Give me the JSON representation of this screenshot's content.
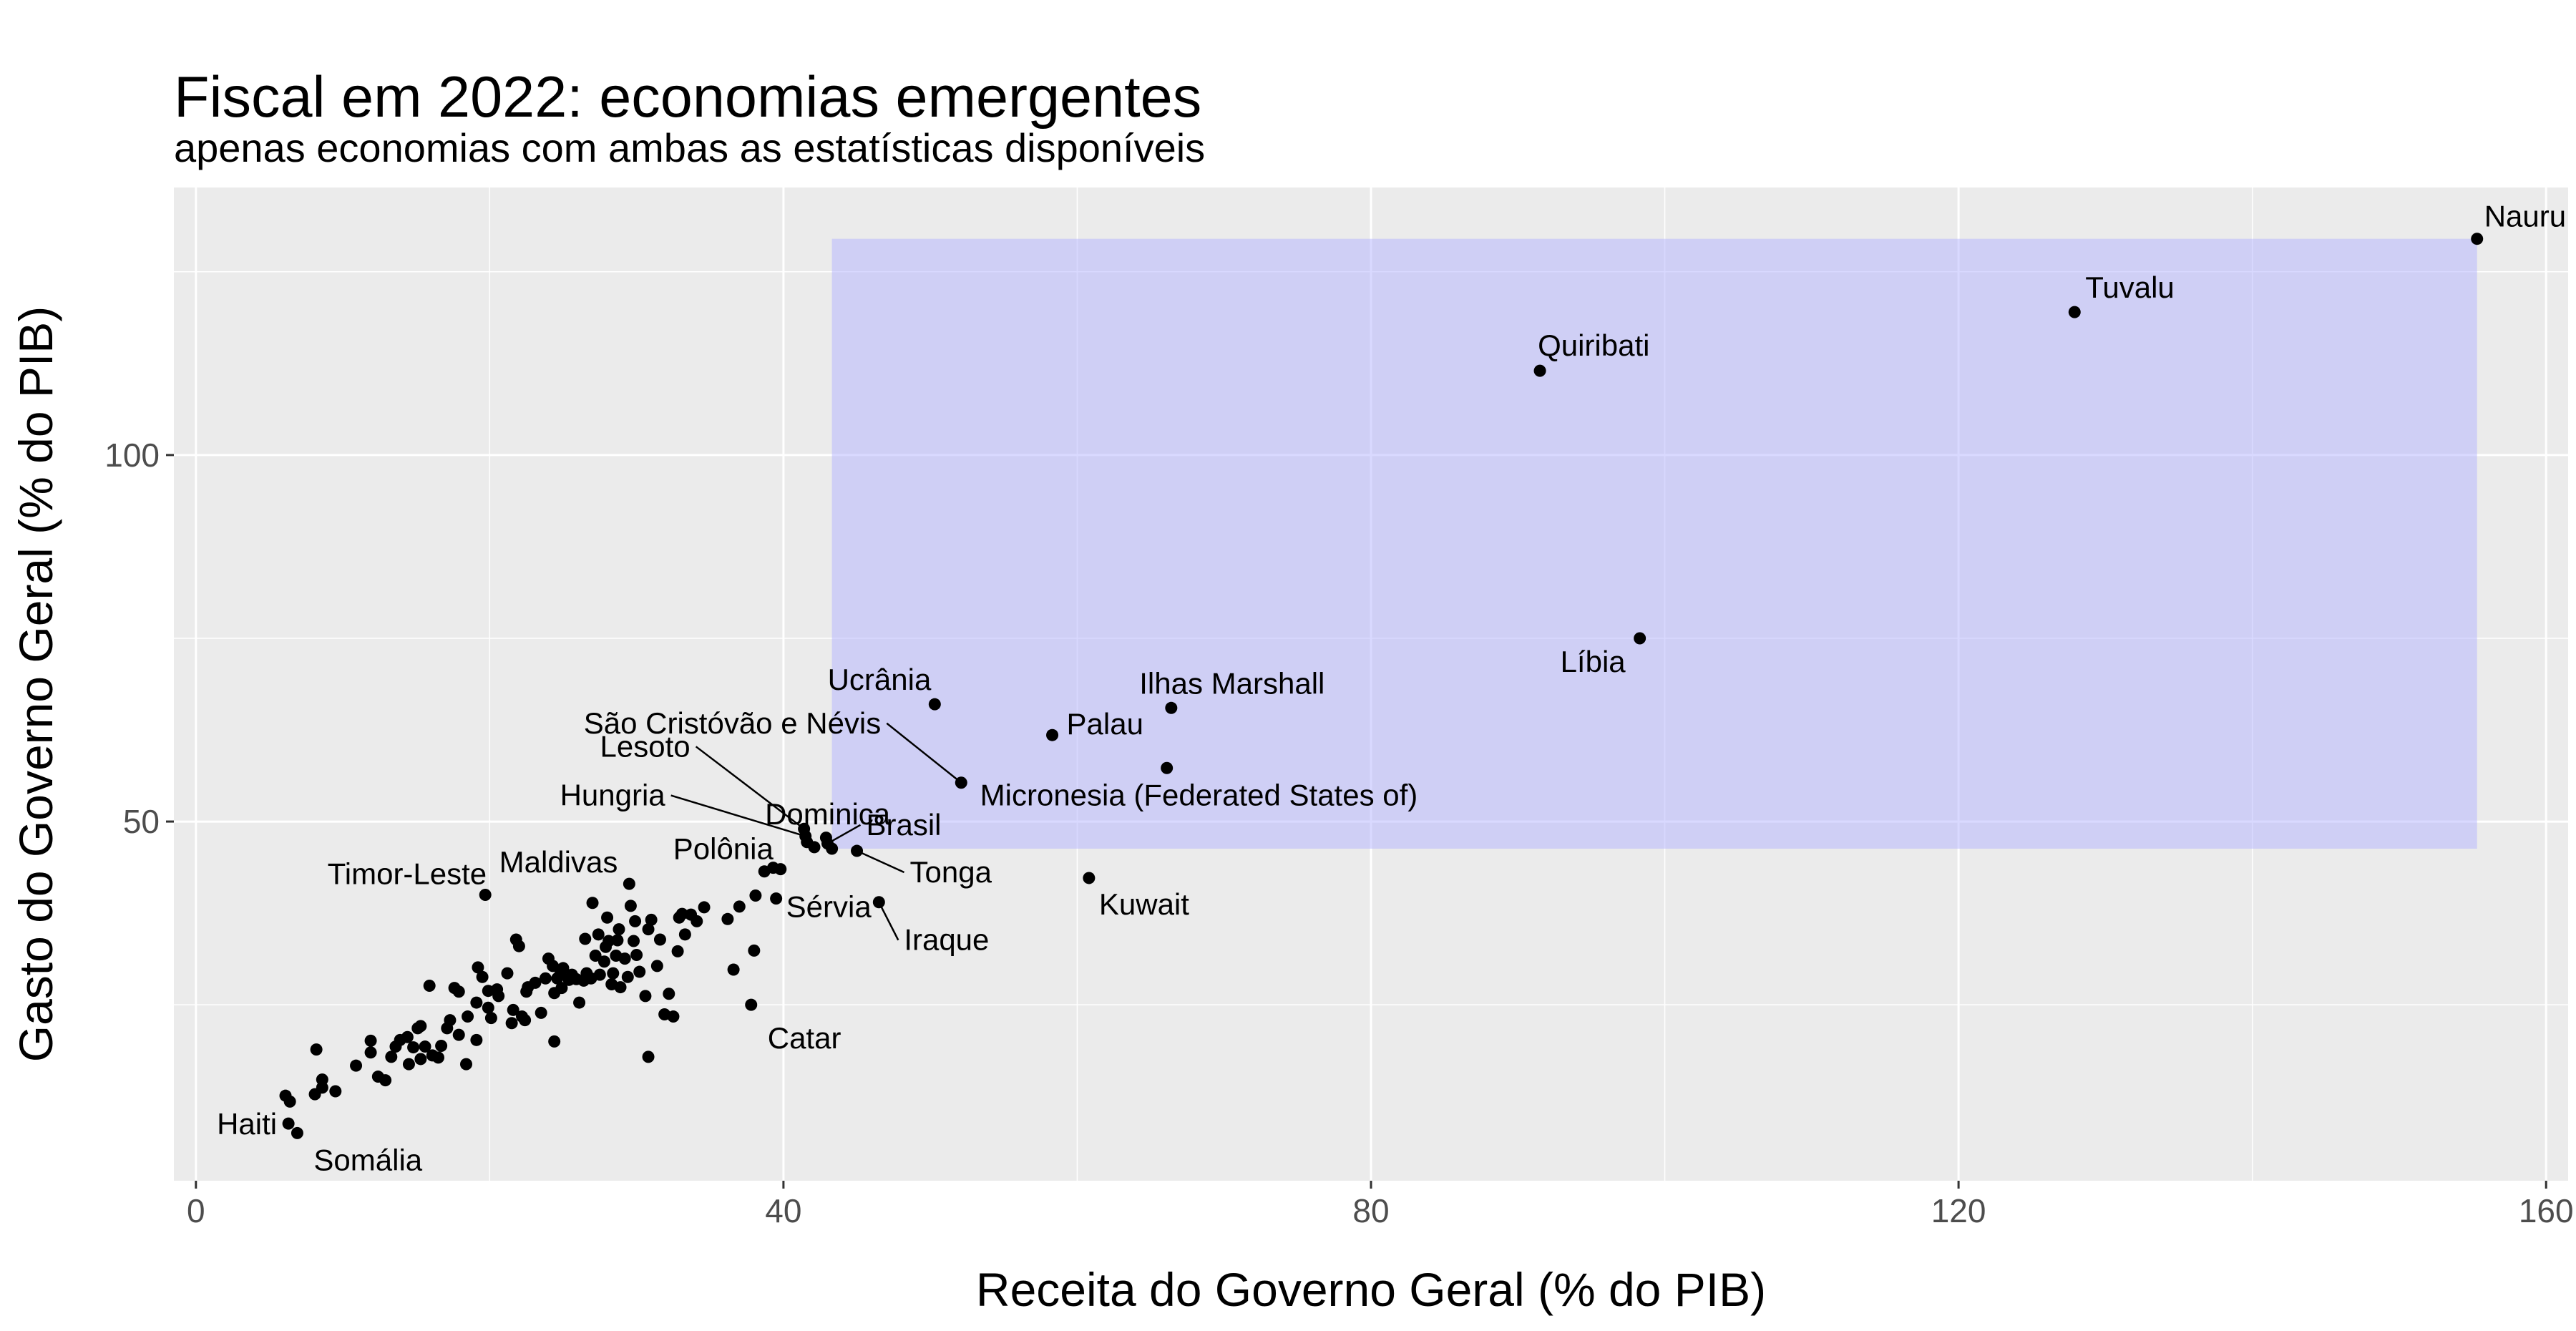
{
  "chart_data": {
    "type": "scatter",
    "title": "Fiscal em 2022: economias emergentes",
    "subtitle": "apenas economias com ambas as estatísticas disponíveis",
    "xlabel": "Receita do Governo Geral (% do PIB)",
    "ylabel": "Gasto do Governo Geral (% do PIB)",
    "xlim": [
      -1.5,
      161.5
    ],
    "ylim": [
      1,
      136.5
    ],
    "xticks": [
      0,
      40,
      80,
      120,
      160
    ],
    "xtick_labels": [
      "0",
      "40",
      "80",
      "120",
      "160"
    ],
    "yticks": [
      50,
      100
    ],
    "ytick_labels": [
      "50",
      "100"
    ],
    "grid": true,
    "highlight_rect": {
      "x": [
        43.3,
        155.3
      ],
      "y": [
        46.3,
        129.5
      ],
      "color": "#b3b3ff"
    },
    "labeled_points": [
      {
        "name": "Nauru",
        "x": 155.3,
        "y": 129.5
      },
      {
        "name": "Tuvalu",
        "x": 127.9,
        "y": 119.5
      },
      {
        "name": "Quiribati",
        "x": 91.5,
        "y": 111.5
      },
      {
        "name": "Líbia",
        "x": 98.3,
        "y": 75.0
      },
      {
        "name": "Ucrânia",
        "x": 50.3,
        "y": 66.0
      },
      {
        "name": "Ilhas Marshall",
        "x": 66.4,
        "y": 65.5
      },
      {
        "name": "Palau",
        "x": 58.3,
        "y": 61.8
      },
      {
        "name": "São Cristóvão e Névis",
        "x": 52.1,
        "y": 55.3
      },
      {
        "name": "Micronesia (Federated States of)",
        "x": 66.1,
        "y": 57.3
      },
      {
        "name": "Lesoto",
        "x": 41.4,
        "y": 49.0
      },
      {
        "name": "Hungria",
        "x": 41.5,
        "y": 48.0
      },
      {
        "name": "Dominica",
        "x": 43.3,
        "y": 46.3
      },
      {
        "name": "Brasil",
        "x": 43.0,
        "y": 47.0
      },
      {
        "name": "Tonga",
        "x": 45.0,
        "y": 46.0
      },
      {
        "name": "Polônia",
        "x": 39.8,
        "y": 43.5
      },
      {
        "name": "Sérvia",
        "x": 39.5,
        "y": 39.5
      },
      {
        "name": "Iraque",
        "x": 46.5,
        "y": 39.0
      },
      {
        "name": "Kuwait",
        "x": 60.8,
        "y": 42.3
      },
      {
        "name": "Timor-Leste",
        "x": 19.7,
        "y": 40.0
      },
      {
        "name": "Maldivas",
        "x": 29.5,
        "y": 41.5
      },
      {
        "name": "Catar",
        "x": 37.8,
        "y": 25.0
      },
      {
        "name": "Haiti",
        "x": 6.3,
        "y": 8.8
      },
      {
        "name": "Somália",
        "x": 6.9,
        "y": 7.5
      }
    ],
    "other_points": [
      [
        6.1,
        12.6
      ],
      [
        6.4,
        11.8
      ],
      [
        8.1,
        12.8
      ],
      [
        8.6,
        13.7
      ],
      [
        8.6,
        14.8
      ],
      [
        9.5,
        13.2
      ],
      [
        8.2,
        18.9
      ],
      [
        10.9,
        16.7
      ],
      [
        11.9,
        18.5
      ],
      [
        11.9,
        20.1
      ],
      [
        12.4,
        15.2
      ],
      [
        12.9,
        14.7
      ],
      [
        13.3,
        17.9
      ],
      [
        13.6,
        19.3
      ],
      [
        13.9,
        20.2
      ],
      [
        14.4,
        20.6
      ],
      [
        14.5,
        16.9
      ],
      [
        14.8,
        19.2
      ],
      [
        15.1,
        21.8
      ],
      [
        15.3,
        17.6
      ],
      [
        15.3,
        22.1
      ],
      [
        15.6,
        19.3
      ],
      [
        15.9,
        27.6
      ],
      [
        16.1,
        18.1
      ],
      [
        16.5,
        17.8
      ],
      [
        16.7,
        19.4
      ],
      [
        17.1,
        21.8
      ],
      [
        17.3,
        22.9
      ],
      [
        17.6,
        27.3
      ],
      [
        17.9,
        26.8
      ],
      [
        17.9,
        20.9
      ],
      [
        18.4,
        16.9
      ],
      [
        18.5,
        23.4
      ],
      [
        19.1,
        20.2
      ],
      [
        19.1,
        25.3
      ],
      [
        19.2,
        30.1
      ],
      [
        19.5,
        28.8
      ],
      [
        19.9,
        24.6
      ],
      [
        19.9,
        26.9
      ],
      [
        20.1,
        23.2
      ],
      [
        20.5,
        27.1
      ],
      [
        20.6,
        26.2
      ],
      [
        21.2,
        29.3
      ],
      [
        21.5,
        22.5
      ],
      [
        21.6,
        24.3
      ],
      [
        21.8,
        33.9
      ],
      [
        22.0,
        33.0
      ],
      [
        22.2,
        23.4
      ],
      [
        22.4,
        22.9
      ],
      [
        22.5,
        26.8
      ],
      [
        22.6,
        27.4
      ],
      [
        23.1,
        28.0
      ],
      [
        23.5,
        23.9
      ],
      [
        23.8,
        28.6
      ],
      [
        24.0,
        31.3
      ],
      [
        24.3,
        30.3
      ],
      [
        24.4,
        26.6
      ],
      [
        24.4,
        20.0
      ],
      [
        24.6,
        28.6
      ],
      [
        24.8,
        29.1
      ],
      [
        24.9,
        27.3
      ],
      [
        25.0,
        30.0
      ],
      [
        25.4,
        28.4
      ],
      [
        25.6,
        29.1
      ],
      [
        25.9,
        28.5
      ],
      [
        26.1,
        25.3
      ],
      [
        26.4,
        28.3
      ],
      [
        26.5,
        34.0
      ],
      [
        26.6,
        29.3
      ],
      [
        26.9,
        28.6
      ],
      [
        27.0,
        38.9
      ],
      [
        27.2,
        31.7
      ],
      [
        27.4,
        34.6
      ],
      [
        27.5,
        29.1
      ],
      [
        27.8,
        30.9
      ],
      [
        27.9,
        32.9
      ],
      [
        28.0,
        36.9
      ],
      [
        28.1,
        33.7
      ],
      [
        28.3,
        27.8
      ],
      [
        28.4,
        29.3
      ],
      [
        28.6,
        31.7
      ],
      [
        28.7,
        33.8
      ],
      [
        28.8,
        35.3
      ],
      [
        28.9,
        27.4
      ],
      [
        29.2,
        31.3
      ],
      [
        29.4,
        28.8
      ],
      [
        29.6,
        38.5
      ],
      [
        29.8,
        33.7
      ],
      [
        29.9,
        36.4
      ],
      [
        30.0,
        31.8
      ],
      [
        30.2,
        29.5
      ],
      [
        30.6,
        26.2
      ],
      [
        30.8,
        17.9
      ],
      [
        30.8,
        35.3
      ],
      [
        31.0,
        36.6
      ],
      [
        31.4,
        30.3
      ],
      [
        31.6,
        33.9
      ],
      [
        31.9,
        23.7
      ],
      [
        32.2,
        26.5
      ],
      [
        32.5,
        23.4
      ],
      [
        32.8,
        32.3
      ],
      [
        32.9,
        36.9
      ],
      [
        33.1,
        37.4
      ],
      [
        33.3,
        34.6
      ],
      [
        33.7,
        37.3
      ],
      [
        34.1,
        36.4
      ],
      [
        34.6,
        38.3
      ],
      [
        36.2,
        36.7
      ],
      [
        36.6,
        29.8
      ],
      [
        37.0,
        38.4
      ],
      [
        38.1,
        39.9
      ],
      [
        38.7,
        43.2
      ],
      [
        38.0,
        32.4
      ],
      [
        39.3,
        43.7
      ],
      [
        41.6,
        47.2
      ],
      [
        42.9,
        47.8
      ],
      [
        42.1,
        46.5
      ]
    ]
  }
}
